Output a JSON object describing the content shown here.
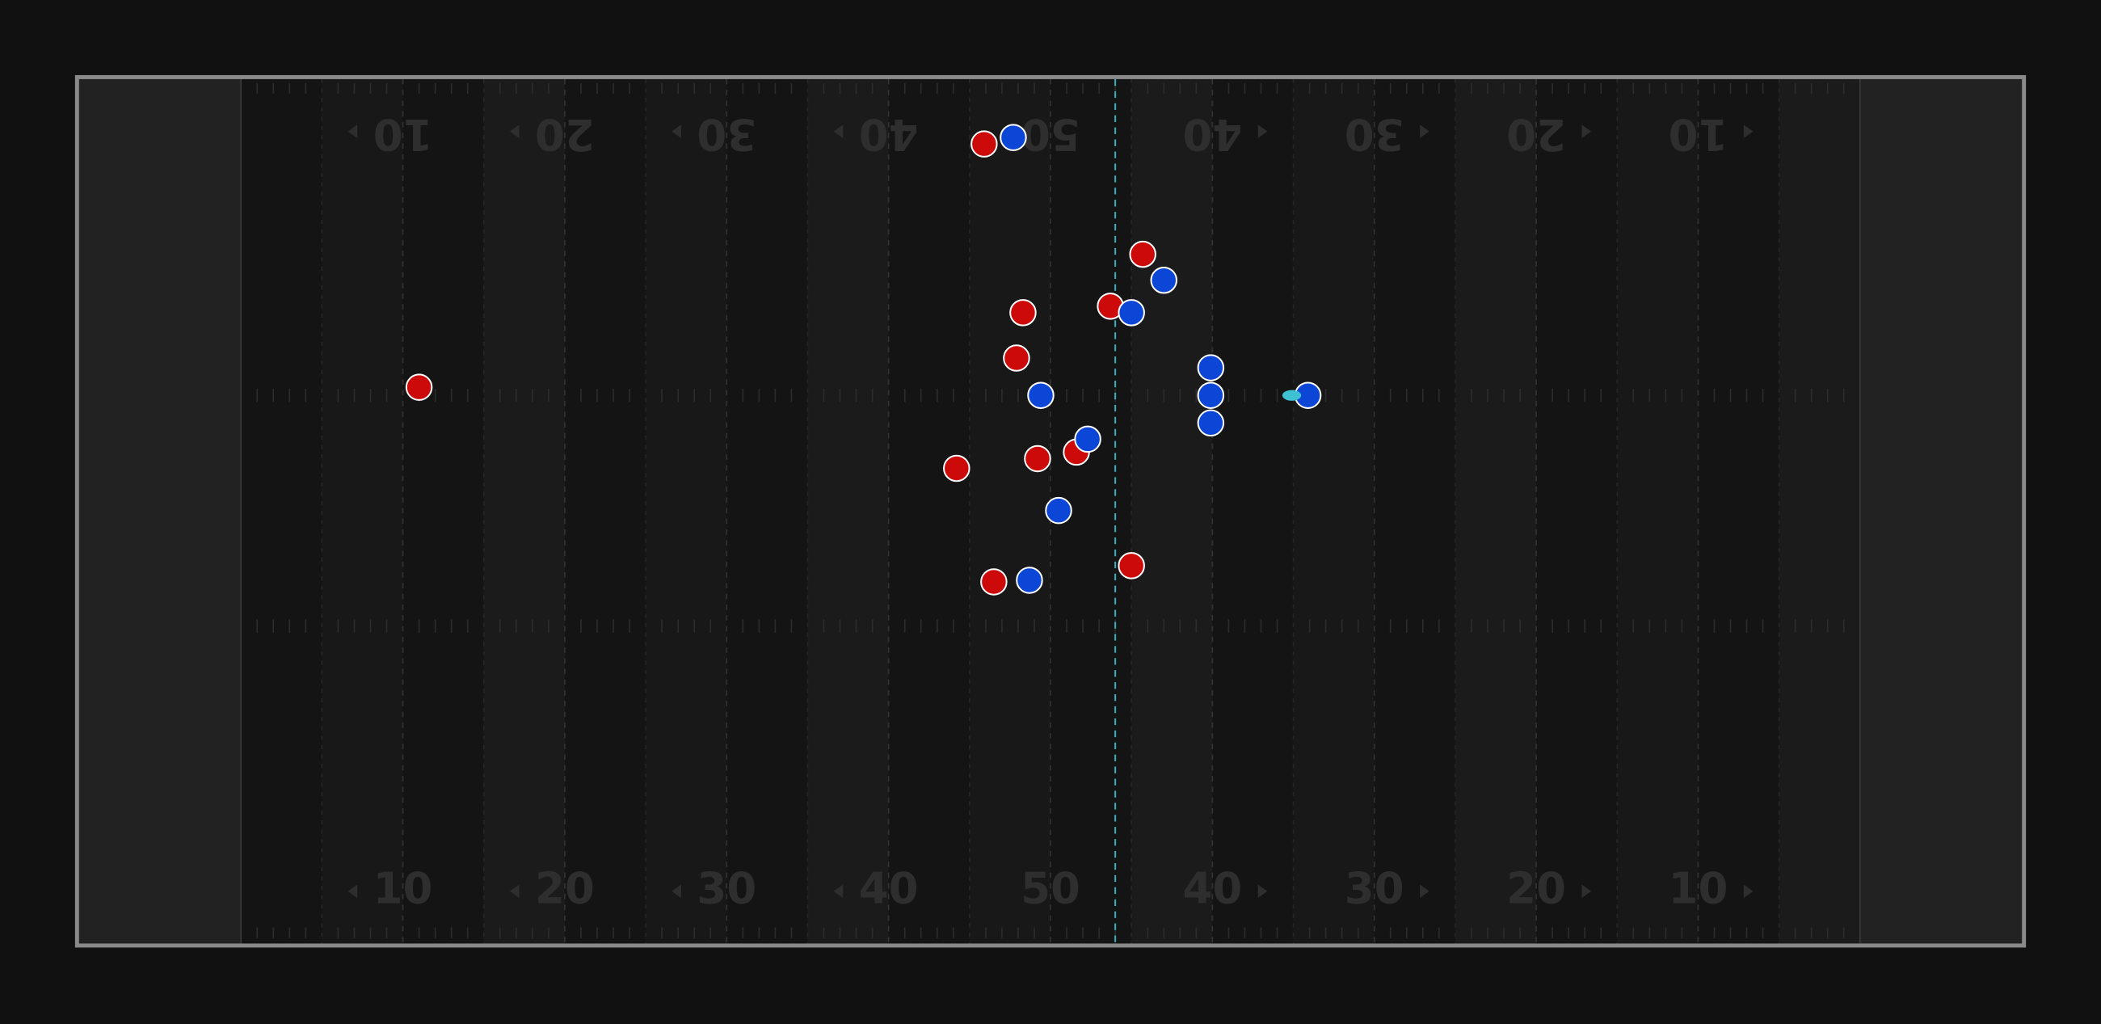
{
  "chart_data": {
    "type": "scatter",
    "xlim": [
      0,
      120
    ],
    "ylim": [
      53.3,
      0
    ],
    "xticks": [
      {
        "value": 20,
        "label": "10"
      },
      {
        "value": 30,
        "label": "20"
      },
      {
        "value": 40,
        "label": "30"
      },
      {
        "value": 50,
        "label": "40"
      },
      {
        "value": 60,
        "label": "50"
      },
      {
        "value": 70,
        "label": "40"
      },
      {
        "value": 80,
        "label": "30"
      },
      {
        "value": 90,
        "label": "20"
      },
      {
        "value": 100,
        "label": "10"
      }
    ],
    "line_of_scrimmage": 64.0,
    "line_of_scrimmage_color": "#3ab0c0",
    "ball": {
      "x": 74.9,
      "y": 19.5,
      "color": "#3ec1d3"
    },
    "series": [
      {
        "color": "#cc0a0a",
        "x": [
          55.9,
          21.0,
          65.7,
          63.7,
          58.3,
          57.9,
          61.6,
          59.2,
          54.2,
          56.5,
          65.0
        ],
        "values": [
          4.0,
          19.0,
          10.8,
          14.0,
          14.4,
          17.2,
          23.0,
          23.4,
          24.0,
          31.0,
          30.0
        ]
      },
      {
        "color": "#0b46d6",
        "x": [
          57.7,
          67.0,
          65.0,
          69.9,
          69.9,
          75.9,
          69.9,
          59.4,
          62.3,
          60.5,
          58.7
        ],
        "values": [
          3.6,
          12.4,
          14.4,
          17.8,
          19.5,
          19.5,
          21.2,
          19.5,
          22.2,
          26.6,
          30.9
        ]
      }
    ]
  }
}
